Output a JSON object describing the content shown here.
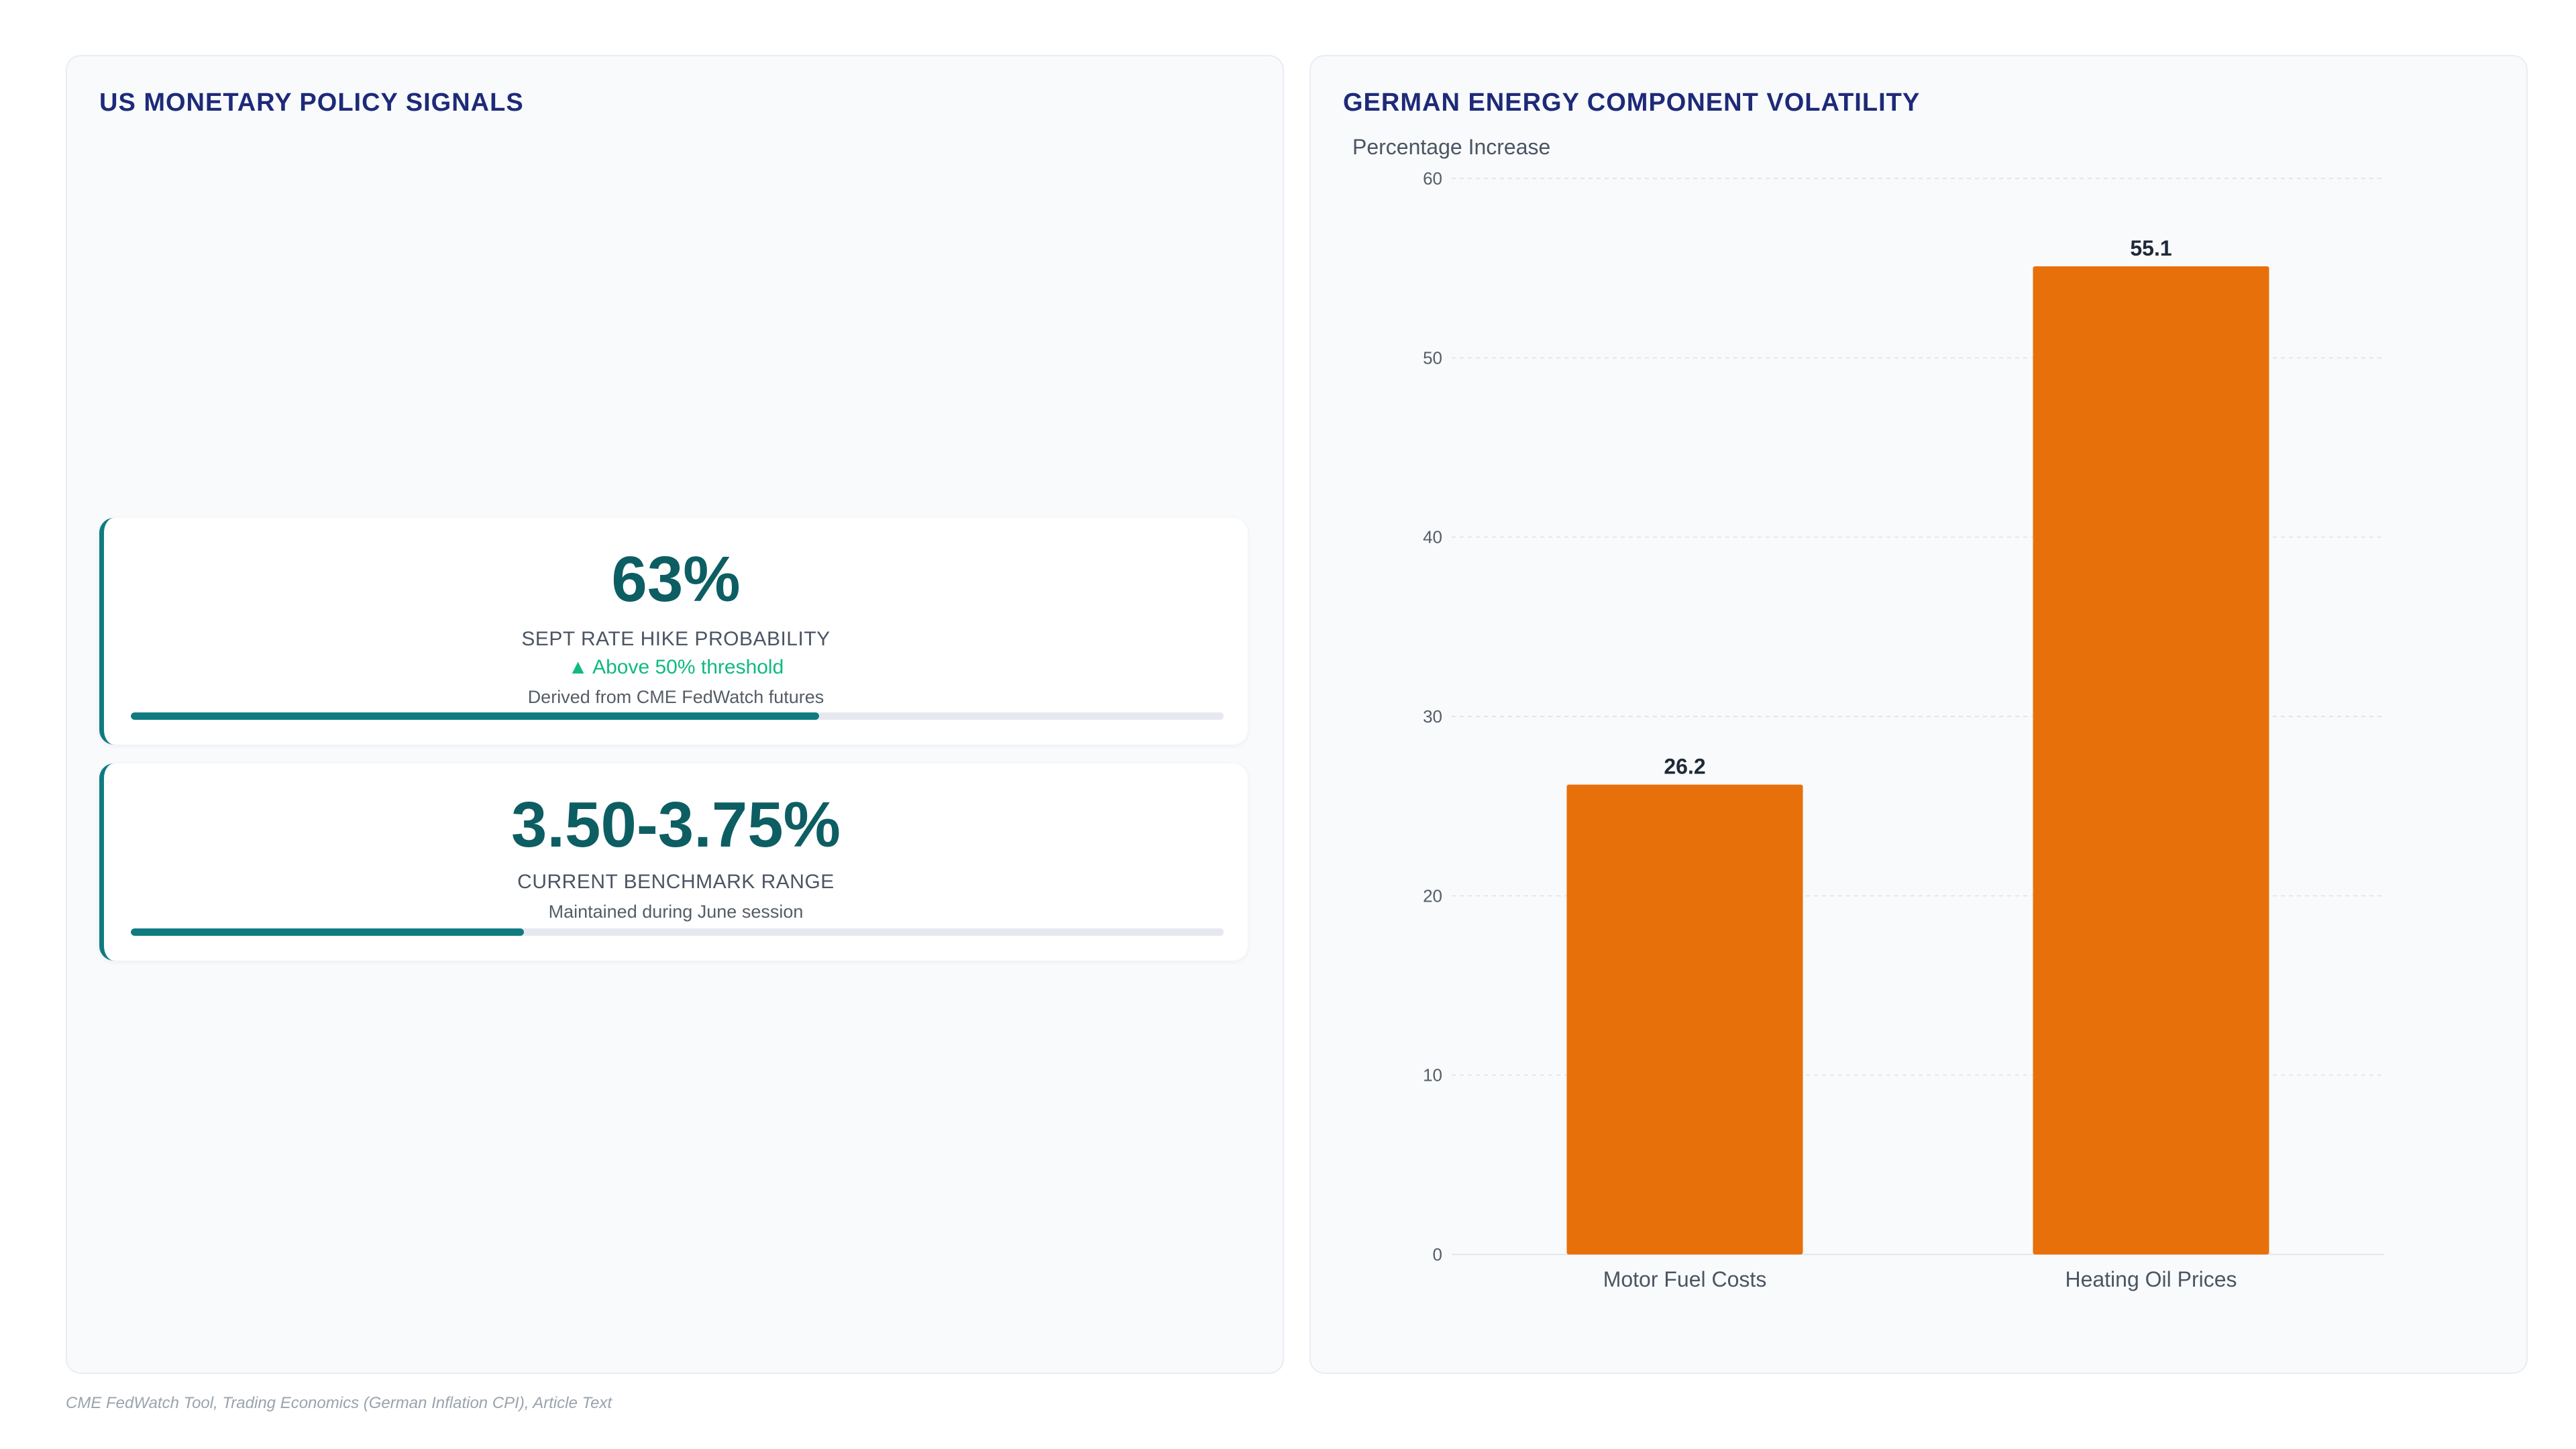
{
  "left_panel": {
    "title": "US MONETARY POLICY SIGNALS",
    "cards": [
      {
        "value": "63%",
        "label": "SEPT RATE HIKE PROBABILITY",
        "trend": "▲ Above 50% threshold",
        "note": "Derived from CME FedWatch futures",
        "progress": 0.63
      },
      {
        "value": "3.50-3.75%",
        "label": "CURRENT BENCHMARK RANGE",
        "note": "Maintained during June session",
        "progress": 0.36
      }
    ]
  },
  "right_panel": {
    "title": "GERMAN ENERGY COMPONENT VOLATILITY"
  },
  "chart_data": {
    "type": "bar",
    "title": "GERMAN ENERGY COMPONENT VOLATILITY",
    "ylabel": "Percentage Increase",
    "xlabel": "",
    "categories": [
      "Motor Fuel Costs",
      "Heating Oil Prices"
    ],
    "values": [
      26.2,
      55.1
    ],
    "ylim": [
      0,
      60
    ],
    "yticks": [
      0,
      10,
      20,
      30,
      40,
      50,
      60
    ],
    "grid": true,
    "bar_color": "#e8700a"
  },
  "footer": {
    "source": "CME FedWatch Tool, Trading Economics (German Inflation CPI), Article Text"
  }
}
